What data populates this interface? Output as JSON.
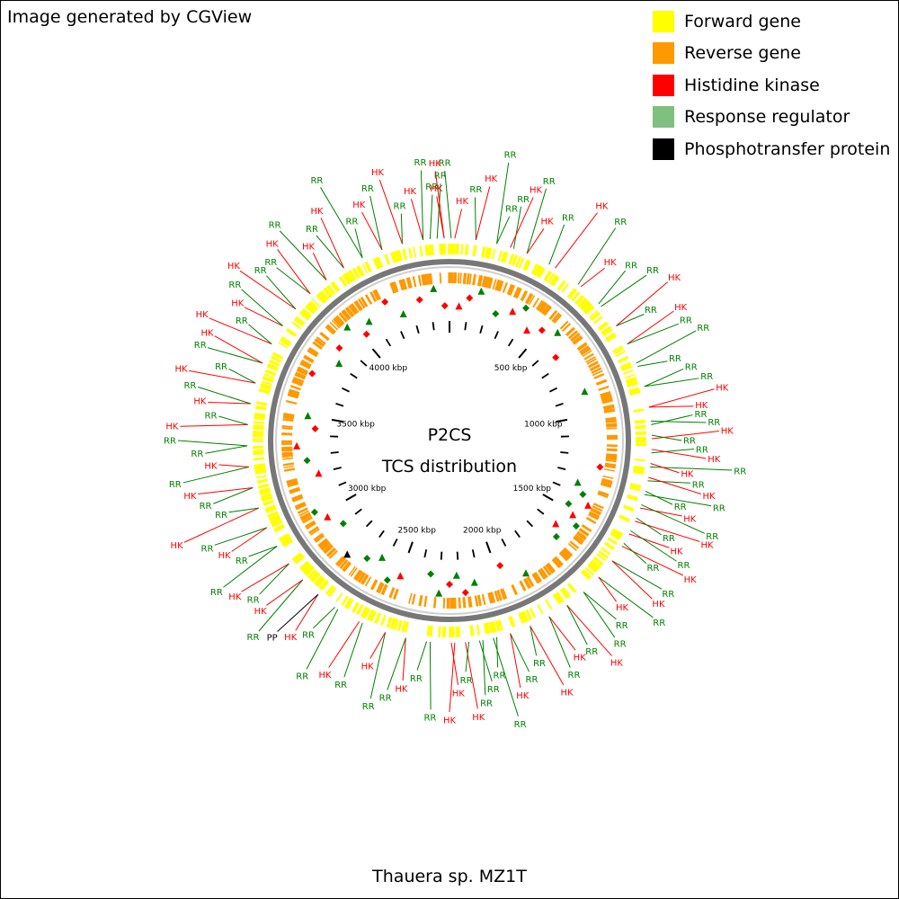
{
  "header": {
    "text": "Image generated by CGView"
  },
  "legend": [
    {
      "label": "Forward gene",
      "color": "#ffff00"
    },
    {
      "label": "Reverse gene",
      "color": "#ff9900"
    },
    {
      "label": "Histidine kinase",
      "color": "#ff0000"
    },
    {
      "label": "Response regulator",
      "color": "#7fbf7f"
    },
    {
      "label": "Phosphotransfer protein",
      "color": "#000000"
    }
  ],
  "map": {
    "title": "P2CS",
    "subtitle": "TCS distribution",
    "organism": "Thauera sp. MZ1T",
    "genome_kbp": 4500,
    "scale_labels": [
      "500 kbp",
      "1000 kbp",
      "1500 kbp",
      "2000 kbp",
      "2500 kbp",
      "3000 kbp",
      "3500 kbp",
      "4000 kbp"
    ],
    "scale_values_kbp": [
      500,
      1000,
      1500,
      2000,
      2500,
      3000,
      3500,
      4000
    ],
    "label_colors": {
      "HK": "#ff0000",
      "RR": "#008000",
      "PP": "#000000"
    },
    "tcs_labels": [
      {
        "t": "RR",
        "d": -4
      },
      {
        "t": "HK",
        "d": -3
      },
      {
        "t": "RR",
        "d": -2
      },
      {
        "t": "RR",
        "d": -1
      },
      {
        "t": "HK",
        "d": 3
      },
      {
        "t": "RR",
        "d": 6
      },
      {
        "t": "HK",
        "d": 9
      },
      {
        "t": "RR",
        "d": 12
      },
      {
        "t": "RR",
        "d": 15
      },
      {
        "t": "RR",
        "d": 17
      },
      {
        "t": "HK",
        "d": 19
      },
      {
        "t": "RR",
        "d": 21
      },
      {
        "t": "HK",
        "d": 24
      },
      {
        "t": "RR",
        "d": 28
      },
      {
        "t": "HK",
        "d": 33
      },
      {
        "t": "RR",
        "d": 38
      },
      {
        "t": "HK",
        "d": 42
      },
      {
        "t": "RR",
        "d": 46
      },
      {
        "t": "RR",
        "d": 50
      },
      {
        "t": "HK",
        "d": 54
      },
      {
        "t": "RR",
        "d": 57
      },
      {
        "t": "HK",
        "d": 60
      },
      {
        "t": "RR",
        "d": 63
      },
      {
        "t": "RR",
        "d": 66
      },
      {
        "t": "RR",
        "d": 70
      },
      {
        "t": "RR",
        "d": 73
      },
      {
        "t": "RR",
        "d": 76
      },
      {
        "t": "HK",
        "d": 79
      },
      {
        "t": "HK",
        "d": 82
      },
      {
        "t": "RR",
        "d": 84
      },
      {
        "t": "RR",
        "d": 86
      },
      {
        "t": "HK",
        "d": 88
      },
      {
        "t": "RR",
        "d": 90
      },
      {
        "t": "RR",
        "d": 92
      },
      {
        "t": "HK",
        "d": 94
      },
      {
        "t": "RR",
        "d": 96
      },
      {
        "t": "HK",
        "d": 98
      },
      {
        "t": "RR",
        "d": 100
      },
      {
        "t": "HK",
        "d": 102
      },
      {
        "t": "RR",
        "d": 104
      },
      {
        "t": "RR",
        "d": 106
      },
      {
        "t": "HK",
        "d": 108
      },
      {
        "t": "RR",
        "d": 110
      },
      {
        "t": "HK",
        "d": 112
      },
      {
        "t": "RR",
        "d": 114
      },
      {
        "t": "HK",
        "d": 116
      },
      {
        "t": "RR",
        "d": 118
      },
      {
        "t": "HK",
        "d": 120
      },
      {
        "t": "RR",
        "d": 122
      },
      {
        "t": "RR",
        "d": 125
      },
      {
        "t": "HK",
        "d": 128
      },
      {
        "t": "RR",
        "d": 131
      },
      {
        "t": "HK",
        "d": 134
      },
      {
        "t": "RR",
        "d": 137
      },
      {
        "t": "RR",
        "d": 140
      },
      {
        "t": "HK",
        "d": 143
      },
      {
        "t": "RR",
        "d": 146
      },
      {
        "t": "HK",
        "d": 149
      },
      {
        "t": "RR",
        "d": 152
      },
      {
        "t": "HK",
        "d": 155
      },
      {
        "t": "RR",
        "d": 158
      },
      {
        "t": "RR",
        "d": 161
      },
      {
        "t": "HK",
        "d": 164
      },
      {
        "t": "RR",
        "d": 166
      },
      {
        "t": "RR",
        "d": 168
      },
      {
        "t": "RR",
        "d": 170
      },
      {
        "t": "RR",
        "d": 172
      },
      {
        "t": "HK",
        "d": 174
      },
      {
        "t": "RR",
        "d": 176
      },
      {
        "t": "HK",
        "d": 178
      },
      {
        "t": "HK",
        "d": 180
      },
      {
        "t": "RR",
        "d": 184
      },
      {
        "t": "RR",
        "d": 188
      },
      {
        "t": "HK",
        "d": 191
      },
      {
        "t": "RR",
        "d": 194
      },
      {
        "t": "RR",
        "d": 197
      },
      {
        "t": "HK",
        "d": 200
      },
      {
        "t": "RR",
        "d": 204
      },
      {
        "t": "HK",
        "d": 208
      },
      {
        "t": "RR",
        "d": 212
      },
      {
        "t": "RR",
        "d": 216
      },
      {
        "t": "HK",
        "d": 219
      },
      {
        "t": "PP",
        "d": 222
      },
      {
        "t": "RR",
        "d": 225
      },
      {
        "t": "HK",
        "d": 228
      },
      {
        "t": "RR",
        "d": 231
      },
      {
        "t": "HK",
        "d": 234
      },
      {
        "t": "RR",
        "d": 237
      },
      {
        "t": "RR",
        "d": 240
      },
      {
        "t": "HK",
        "d": 243
      },
      {
        "t": "RR",
        "d": 246
      },
      {
        "t": "HK",
        "d": 249
      },
      {
        "t": "RR",
        "d": 252
      },
      {
        "t": "RR",
        "d": 255
      },
      {
        "t": "HK",
        "d": 258
      },
      {
        "t": "RR",
        "d": 261
      },
      {
        "t": "HK",
        "d": 264
      },
      {
        "t": "RR",
        "d": 267
      },
      {
        "t": "RR",
        "d": 270
      },
      {
        "t": "HK",
        "d": 273
      },
      {
        "t": "RR",
        "d": 276
      },
      {
        "t": "HK",
        "d": 279
      },
      {
        "t": "RR",
        "d": 282
      },
      {
        "t": "HK",
        "d": 285
      },
      {
        "t": "RR",
        "d": 288
      },
      {
        "t": "RR",
        "d": 291
      },
      {
        "t": "HK",
        "d": 294
      },
      {
        "t": "HK",
        "d": 297
      },
      {
        "t": "RR",
        "d": 300
      },
      {
        "t": "HK",
        "d": 303
      },
      {
        "t": "RR",
        "d": 306
      },
      {
        "t": "HK",
        "d": 309
      },
      {
        "t": "RR",
        "d": 312
      },
      {
        "t": "RR",
        "d": 315
      },
      {
        "t": "HK",
        "d": 318
      },
      {
        "t": "RR",
        "d": 321
      },
      {
        "t": "HK",
        "d": 324
      },
      {
        "t": "RR",
        "d": 327
      },
      {
        "t": "HK",
        "d": 330
      },
      {
        "t": "RR",
        "d": 333
      },
      {
        "t": "RR",
        "d": 336
      },
      {
        "t": "HK",
        "d": 339
      },
      {
        "t": "RR",
        "d": 342
      },
      {
        "t": "HK",
        "d": 345
      },
      {
        "t": "RR",
        "d": 348
      },
      {
        "t": "HK",
        "d": 351
      },
      {
        "t": "RR",
        "d": 354
      },
      {
        "t": "HK",
        "d": 357
      }
    ],
    "tcs_markers": [
      {
        "k": "HK",
        "d": 4
      },
      {
        "k": "HK",
        "d": 8
      },
      {
        "k": "RR",
        "d": 12
      },
      {
        "k": "RR",
        "d": 20
      },
      {
        "k": "HK",
        "d": 26
      },
      {
        "k": "RR",
        "d": 30
      },
      {
        "k": "HK",
        "d": 35
      },
      {
        "k": "HK",
        "d": 40
      },
      {
        "k": "RR",
        "d": 45
      },
      {
        "k": "HK",
        "d": 52
      },
      {
        "k": "RR",
        "d": 70
      },
      {
        "k": "HK",
        "d": 100
      },
      {
        "k": "RR",
        "d": 108
      },
      {
        "k": "RR",
        "d": 112
      },
      {
        "k": "HK",
        "d": 115
      },
      {
        "k": "RR",
        "d": 118
      },
      {
        "k": "HK",
        "d": 121
      },
      {
        "k": "RR",
        "d": 124
      },
      {
        "k": "HK",
        "d": 128
      },
      {
        "k": "RR",
        "d": 132
      },
      {
        "k": "RR",
        "d": 150
      },
      {
        "k": "HK",
        "d": 158
      },
      {
        "k": "RR",
        "d": 170
      },
      {
        "k": "HK",
        "d": 174
      },
      {
        "k": "RR",
        "d": 177
      },
      {
        "k": "HK",
        "d": 180
      },
      {
        "k": "RR",
        "d": 184
      },
      {
        "k": "RR",
        "d": 188
      },
      {
        "k": "HK",
        "d": 200
      },
      {
        "k": "RR",
        "d": 204
      },
      {
        "k": "RR",
        "d": 210
      },
      {
        "k": "RR",
        "d": 215
      },
      {
        "k": "PP",
        "d": 222
      },
      {
        "k": "RR",
        "d": 232
      },
      {
        "k": "HK",
        "d": 238
      },
      {
        "k": "RR",
        "d": 242
      },
      {
        "k": "HK",
        "d": 256
      },
      {
        "k": "RR",
        "d": 262
      },
      {
        "k": "HK",
        "d": 268
      },
      {
        "k": "HK",
        "d": 275
      },
      {
        "k": "RR",
        "d": 280
      },
      {
        "k": "HK",
        "d": 296
      },
      {
        "k": "RR",
        "d": 305
      },
      {
        "k": "HK",
        "d": 310
      },
      {
        "k": "RR",
        "d": 318
      },
      {
        "k": "HK",
        "d": 322
      },
      {
        "k": "RR",
        "d": 326
      },
      {
        "k": "HK",
        "d": 335
      },
      {
        "k": "RR",
        "d": 340
      },
      {
        "k": "HK",
        "d": 348
      },
      {
        "k": "RR",
        "d": 354
      },
      {
        "k": "HK",
        "d": 358
      }
    ]
  }
}
